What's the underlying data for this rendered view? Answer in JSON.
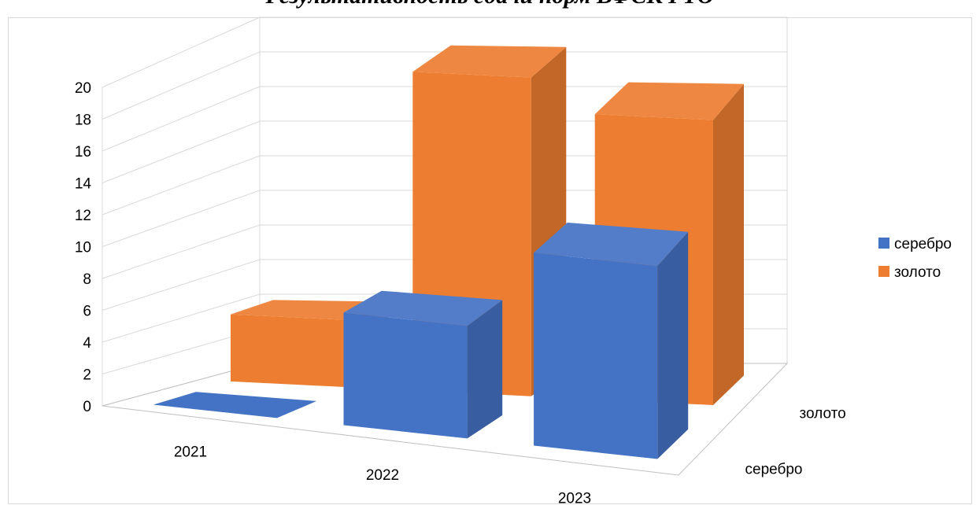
{
  "chart_data": {
    "type": "bar",
    "title": "Результативность сдачи норм ВФСК ГТО",
    "categories": [
      "2021",
      "2022",
      "2023"
    ],
    "series": [
      {
        "name": "серебро",
        "values": [
          0,
          7,
          12
        ],
        "color": "#4472c4"
      },
      {
        "name": "золото",
        "values": [
          4,
          19,
          17
        ],
        "color": "#ed7d31"
      }
    ],
    "ylim": [
      0,
      20
    ],
    "yticks": [
      0,
      2,
      4,
      6,
      8,
      10,
      12,
      14,
      16,
      18,
      20
    ],
    "depth_labels": [
      "серебро",
      "золото"
    ],
    "grid": true,
    "legend_position": "right",
    "projection": "3d-column"
  }
}
